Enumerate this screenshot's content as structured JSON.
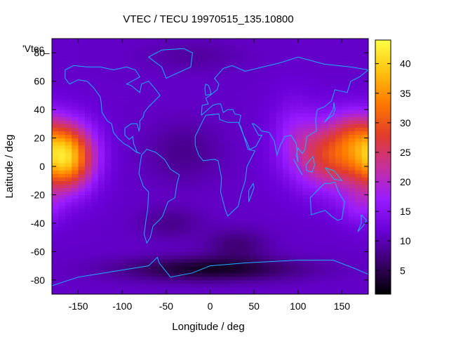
{
  "chart_data": {
    "type": "heatmap",
    "title": "VTEC / TECU 19970515_135.10800",
    "xlabel": "Longitude / deg",
    "ylabel": "Latitude / deg",
    "legend_key": "'Vtec_",
    "xlim": [
      -180,
      180
    ],
    "ylim": [
      -90,
      90
    ],
    "x_ticks": [
      -150,
      -100,
      -50,
      0,
      50,
      100,
      150
    ],
    "y_ticks": [
      -80,
      -60,
      -40,
      -20,
      0,
      20,
      40,
      60,
      80
    ],
    "colorbar": {
      "range": [
        1,
        44
      ],
      "ticks": [
        5,
        10,
        15,
        20,
        25,
        30,
        35,
        40
      ],
      "palette": [
        "#000000",
        "#3a006a",
        "#6a00d8",
        "#9a1cff",
        "#c6309a",
        "#e23c2a",
        "#ff7a00",
        "#ffc20f",
        "#ffff44"
      ]
    },
    "grid": {
      "lon_start": -180,
      "lon_step": 7.5,
      "n_lon": 48,
      "lat_start": -90,
      "lat_step": 2.5,
      "n_lat": 72,
      "background_tecu": 11,
      "features": [
        {
          "kind": "peak",
          "lon": -163,
          "lat": 7,
          "sigma_lon": 22,
          "sigma_lat": 16,
          "amp": 26
        },
        {
          "kind": "peak",
          "lon": 142,
          "lat": 8,
          "sigma_lon": 32,
          "sigma_lat": 17,
          "amp": 18
        },
        {
          "kind": "peak",
          "lon": 165,
          "lat": 25,
          "sigma_lon": 18,
          "sigma_lat": 12,
          "amp": 6
        },
        {
          "kind": "peak",
          "lon": 170,
          "lat": -28,
          "sigma_lon": 16,
          "sigma_lat": 10,
          "amp": 5
        },
        {
          "kind": "peak",
          "lon": 95,
          "lat": 25,
          "sigma_lon": 18,
          "sigma_lat": 18,
          "amp": 4
        },
        {
          "kind": "trough",
          "lon": 0,
          "lat": -72,
          "sigma_lon": 70,
          "sigma_lat": 6,
          "amp": 8
        },
        {
          "kind": "trough",
          "lon": 30,
          "lat": -55,
          "sigma_lon": 25,
          "sigma_lat": 8,
          "amp": 4
        },
        {
          "kind": "trough",
          "lon": -45,
          "lat": -40,
          "sigma_lon": 25,
          "sigma_lat": 8,
          "amp": 3
        },
        {
          "kind": "trough",
          "lon": -30,
          "lat": 10,
          "sigma_lon": 30,
          "sigma_lat": 15,
          "amp": 3
        },
        {
          "kind": "trough",
          "lon": -20,
          "lat": 78,
          "sigma_lon": 40,
          "sigma_lat": 8,
          "amp": 2
        }
      ]
    },
    "coastlines": [
      {
        "name": "north-america",
        "points": [
          [
            -165,
            68
          ],
          [
            -155,
            71
          ],
          [
            -140,
            70
          ],
          [
            -125,
            70
          ],
          [
            -110,
            68
          ],
          [
            -95,
            70
          ],
          [
            -85,
            68
          ],
          [
            -80,
            63
          ],
          [
            -95,
            58
          ],
          [
            -90,
            57
          ],
          [
            -80,
            52
          ],
          [
            -78,
            58
          ],
          [
            -70,
            60
          ],
          [
            -63,
            55
          ],
          [
            -57,
            50
          ],
          [
            -65,
            45
          ],
          [
            -70,
            42
          ],
          [
            -75,
            38
          ],
          [
            -76,
            35
          ],
          [
            -80,
            32
          ],
          [
            -80,
            27
          ],
          [
            -81,
            25
          ],
          [
            -83,
            30
          ],
          [
            -90,
            30
          ],
          [
            -97,
            27
          ],
          [
            -97,
            22
          ],
          [
            -92,
            19
          ],
          [
            -88,
            21
          ],
          [
            -87,
            16
          ],
          [
            -83,
            10
          ],
          [
            -79,
            9
          ],
          [
            -84,
            10
          ],
          [
            -92,
            14
          ],
          [
            -98,
            16
          ],
          [
            -105,
            20
          ],
          [
            -110,
            24
          ],
          [
            -112,
            30
          ],
          [
            -117,
            32
          ],
          [
            -123,
            38
          ],
          [
            -124,
            45
          ],
          [
            -125,
            49
          ],
          [
            -132,
            55
          ],
          [
            -140,
            60
          ],
          [
            -150,
            61
          ],
          [
            -160,
            58
          ],
          [
            -165,
            62
          ],
          [
            -165,
            68
          ]
        ]
      },
      {
        "name": "greenland",
        "points": [
          [
            -55,
            82
          ],
          [
            -30,
            83
          ],
          [
            -20,
            80
          ],
          [
            -22,
            70
          ],
          [
            -40,
            65
          ],
          [
            -50,
            62
          ],
          [
            -55,
            70
          ],
          [
            -70,
            77
          ],
          [
            -55,
            82
          ]
        ]
      },
      {
        "name": "south-america",
        "points": [
          [
            -78,
            8
          ],
          [
            -72,
            12
          ],
          [
            -62,
            10
          ],
          [
            -52,
            5
          ],
          [
            -45,
            -2
          ],
          [
            -35,
            -6
          ],
          [
            -38,
            -13
          ],
          [
            -40,
            -22
          ],
          [
            -48,
            -25
          ],
          [
            -54,
            -35
          ],
          [
            -58,
            -38
          ],
          [
            -65,
            -42
          ],
          [
            -68,
            -50
          ],
          [
            -72,
            -54
          ],
          [
            -75,
            -48
          ],
          [
            -73,
            -38
          ],
          [
            -71,
            -30
          ],
          [
            -70,
            -18
          ],
          [
            -76,
            -14
          ],
          [
            -81,
            -5
          ],
          [
            -80,
            0
          ],
          [
            -78,
            8
          ]
        ]
      },
      {
        "name": "africa",
        "points": [
          [
            -17,
            15
          ],
          [
            -17,
            21
          ],
          [
            -10,
            30
          ],
          [
            -5,
            36
          ],
          [
            10,
            37
          ],
          [
            11,
            33
          ],
          [
            20,
            31
          ],
          [
            32,
            31
          ],
          [
            35,
            28
          ],
          [
            43,
            12
          ],
          [
            51,
            11
          ],
          [
            42,
            0
          ],
          [
            40,
            -10
          ],
          [
            35,
            -20
          ],
          [
            32,
            -28
          ],
          [
            20,
            -35
          ],
          [
            17,
            -30
          ],
          [
            12,
            -18
          ],
          [
            13,
            -8
          ],
          [
            9,
            4
          ],
          [
            5,
            5
          ],
          [
            -8,
            4
          ],
          [
            -13,
            8
          ],
          [
            -17,
            15
          ]
        ]
      },
      {
        "name": "eurasia",
        "points": [
          [
            -10,
            36
          ],
          [
            -9,
            43
          ],
          [
            -2,
            44
          ],
          [
            -5,
            48
          ],
          [
            0,
            50
          ],
          [
            8,
            54
          ],
          [
            10,
            58
          ],
          [
            5,
            62
          ],
          [
            15,
            69
          ],
          [
            25,
            71
          ],
          [
            40,
            67
          ],
          [
            60,
            70
          ],
          [
            80,
            73
          ],
          [
            100,
            77
          ],
          [
            130,
            72
          ],
          [
            160,
            70
          ],
          [
            180,
            68
          ],
          [
            170,
            63
          ],
          [
            160,
            60
          ],
          [
            156,
            52
          ],
          [
            142,
            54
          ],
          [
            138,
            46
          ],
          [
            130,
            42
          ],
          [
            122,
            40
          ],
          [
            120,
            33
          ],
          [
            121,
            25
          ],
          [
            110,
            21
          ],
          [
            108,
            12
          ],
          [
            105,
            9
          ],
          [
            100,
            13
          ],
          [
            98,
            8
          ],
          [
            100,
            3
          ],
          [
            98,
            16
          ],
          [
            92,
            22
          ],
          [
            85,
            21
          ],
          [
            80,
            15
          ],
          [
            76,
            8
          ],
          [
            73,
            18
          ],
          [
            67,
            24
          ],
          [
            58,
            25
          ],
          [
            56,
            27
          ],
          [
            50,
            30
          ],
          [
            48,
            30
          ],
          [
            55,
            22
          ],
          [
            59,
            22
          ],
          [
            52,
            14
          ],
          [
            45,
            12
          ],
          [
            42,
            17
          ],
          [
            38,
            22
          ],
          [
            33,
            30
          ],
          [
            35,
            36
          ],
          [
            28,
            37
          ],
          [
            26,
            40
          ],
          [
            20,
            40
          ],
          [
            15,
            38
          ],
          [
            12,
            44
          ],
          [
            8,
            44
          ],
          [
            3,
            43
          ],
          [
            -10,
            36
          ]
        ]
      },
      {
        "name": "uk",
        "points": [
          [
            -5,
            50
          ],
          [
            1,
            51
          ],
          [
            0,
            54
          ],
          [
            -2,
            57
          ],
          [
            -5,
            58
          ],
          [
            -6,
            55
          ],
          [
            -5,
            50
          ]
        ]
      },
      {
        "name": "japan",
        "points": [
          [
            130,
            31
          ],
          [
            135,
            34
          ],
          [
            140,
            36
          ],
          [
            142,
            40
          ],
          [
            141,
            45
          ],
          [
            140,
            40
          ],
          [
            135,
            35
          ],
          [
            130,
            31
          ]
        ]
      },
      {
        "name": "madagascar",
        "points": [
          [
            44,
            -25
          ],
          [
            50,
            -15
          ],
          [
            49,
            -12
          ],
          [
            44,
            -17
          ],
          [
            44,
            -25
          ]
        ]
      },
      {
        "name": "borneo",
        "points": [
          [
            109,
            1
          ],
          [
            117,
            7
          ],
          [
            119,
            1
          ],
          [
            116,
            -4
          ],
          [
            110,
            -3
          ],
          [
            109,
            1
          ]
        ]
      },
      {
        "name": "sumatra",
        "points": [
          [
            95,
            5
          ],
          [
            105,
            -6
          ],
          [
            102,
            -3
          ],
          [
            95,
            5
          ]
        ]
      },
      {
        "name": "new-guinea",
        "points": [
          [
            131,
            -1
          ],
          [
            141,
            -3
          ],
          [
            150,
            -10
          ],
          [
            141,
            -9
          ],
          [
            131,
            -1
          ]
        ]
      },
      {
        "name": "australia",
        "points": [
          [
            114,
            -22
          ],
          [
            122,
            -17
          ],
          [
            130,
            -12
          ],
          [
            137,
            -12
          ],
          [
            142,
            -11
          ],
          [
            146,
            -18
          ],
          [
            153,
            -25
          ],
          [
            150,
            -37
          ],
          [
            145,
            -38
          ],
          [
            138,
            -35
          ],
          [
            131,
            -31
          ],
          [
            115,
            -34
          ],
          [
            114,
            -22
          ]
        ]
      },
      {
        "name": "new-zealand",
        "points": [
          [
            172,
            -34
          ],
          [
            178,
            -38
          ],
          [
            174,
            -42
          ],
          [
            168,
            -46
          ],
          [
            172,
            -40
          ],
          [
            172,
            -34
          ]
        ]
      },
      {
        "name": "antarctica",
        "points": [
          [
            -180,
            -84
          ],
          [
            -150,
            -78
          ],
          [
            -100,
            -73
          ],
          [
            -70,
            -70
          ],
          [
            -60,
            -64
          ],
          [
            -58,
            -68
          ],
          [
            -45,
            -78
          ],
          [
            -20,
            -75
          ],
          [
            0,
            -70
          ],
          [
            40,
            -68
          ],
          [
            70,
            -67
          ],
          [
            100,
            -66
          ],
          [
            140,
            -66
          ],
          [
            165,
            -72
          ],
          [
            180,
            -76
          ]
        ]
      }
    ]
  }
}
